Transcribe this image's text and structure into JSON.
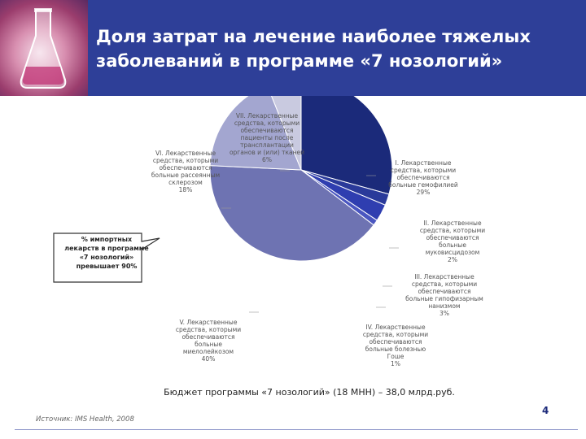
{
  "header": {
    "title_line1": "Доля затрат на лечение наиболее тяжелых",
    "title_line2": "заболеваний в программе «7 нозологий»"
  },
  "chart_data": {
    "type": "pie",
    "slices": [
      {
        "label_lines": [
          "I. Лекарственные",
          "средства, которыми",
          "обеспечиваются",
          "больные гемофилией"
        ],
        "percent_label": "29%",
        "value": 29,
        "color": "#1b2a7a"
      },
      {
        "label_lines": [
          "II. Лекарственные",
          "средства, которыми",
          "обеспечиваются",
          "больные",
          "муковисцидозом"
        ],
        "percent_label": "2%",
        "value": 2,
        "color": "#2a3a9a"
      },
      {
        "label_lines": [
          "III. Лекарственные",
          "средства, которыми",
          "обеспечиваются",
          "больные гипофизарным",
          "нанизмом"
        ],
        "percent_label": "3%",
        "value": 3,
        "color": "#2f3eb0"
      },
      {
        "label_lines": [
          "IV. Лекарственные",
          "средства, которыми",
          "обеспечиваются",
          "больные болезнью",
          "Гоше"
        ],
        "percent_label": "1%",
        "value": 1,
        "color": "#4a56c0"
      },
      {
        "label_lines": [
          "V. Лекарственные",
          "средства, которыми",
          "обеспечиваются",
          "больные",
          "миелолейкозом"
        ],
        "percent_label": "40%",
        "value": 40,
        "color": "#6e73b2"
      },
      {
        "label_lines": [
          "VI. Лекарственные",
          "средства, которыми",
          "обеспечиваются",
          "больные рассеянным",
          "склерозом"
        ],
        "percent_label": "18%",
        "value": 18,
        "color": "#a3a6d0"
      },
      {
        "label_lines": [
          "VII. Лекарственные",
          "средства, которыми",
          "обеспечиваются",
          "пациенты после",
          "трансплантации",
          "органов и (или) тканей"
        ],
        "percent_label": "6%",
        "value": 6,
        "color": "#c9cae0"
      }
    ]
  },
  "callout": {
    "lines": [
      "% импортных",
      "лекарств в программе",
      "«7 нозологий»",
      "превышает 90%"
    ]
  },
  "budget_text": "Бюджет программы «7 нозологий» (18 МНН) – 38,0 млрд.руб.",
  "source_text": "Источник: IMS Health, 2008",
  "page_number": "4"
}
